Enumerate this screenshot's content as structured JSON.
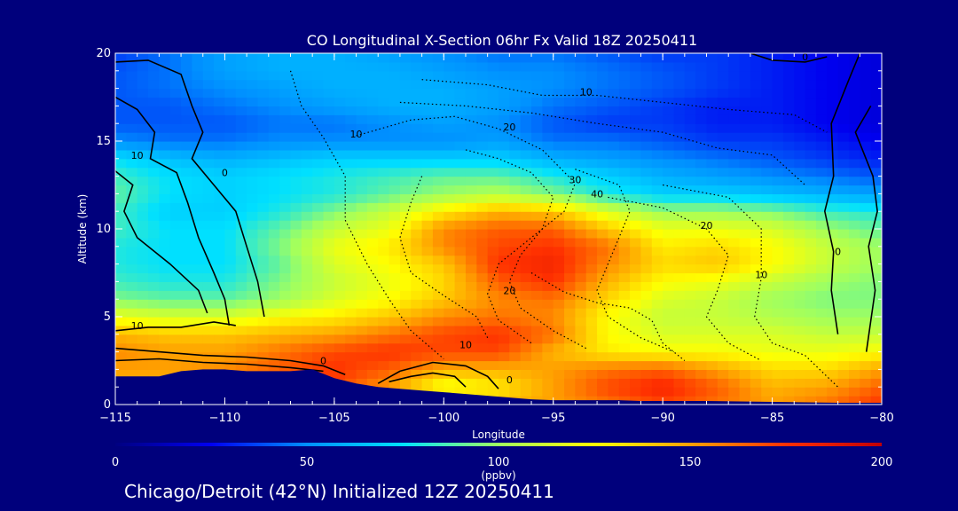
{
  "footer_text": "Chicago/Detroit (42°N) Initialized 12Z 20250411",
  "colors": {
    "background": "#00007c",
    "terrain": "#00007c",
    "colorbar_stops": [
      "#000080",
      "#0000f0",
      "#0090ff",
      "#00e0ff",
      "#a0ff60",
      "#ffff00",
      "#ffa000",
      "#ff3000",
      "#c00000"
    ]
  },
  "chart_data": {
    "type": "heatmap",
    "title": "CO Longitudinal X-Section 06hr  Fx Valid 18Z 20250411",
    "xlabel": "Longitude",
    "ylabel": "Altitude (km)",
    "xlim": [
      -115,
      -80
    ],
    "ylim": [
      0,
      20
    ],
    "x_ticks": [
      "−115",
      "−110",
      "−105",
      "−100",
      "−95",
      "−90",
      "−85",
      "−80"
    ],
    "y_ticks": [
      "0",
      "5",
      "10",
      "15",
      "20"
    ],
    "grid": false,
    "colorbar": {
      "label": "(ppbv)",
      "range": [
        0,
        200
      ],
      "ticks": [
        "0",
        "50",
        "100",
        "150",
        "200"
      ]
    },
    "x_values": [
      -115,
      -112.5,
      -110,
      -107.5,
      -105,
      -102.5,
      -100,
      -97.5,
      -95,
      -92.5,
      -90,
      -87.5,
      -85,
      -82.5,
      -80
    ],
    "y_values": [
      0,
      1,
      2,
      3,
      4,
      5,
      6,
      7,
      8,
      9,
      10,
      11,
      12,
      13,
      14,
      15,
      16,
      17,
      18,
      19,
      20
    ],
    "values": [
      [
        150,
        150,
        150,
        160,
        170,
        160,
        150,
        145,
        150,
        160,
        170,
        160,
        150,
        160,
        175
      ],
      [
        145,
        145,
        150,
        160,
        170,
        150,
        120,
        130,
        150,
        170,
        180,
        165,
        145,
        150,
        165
      ],
      [
        150,
        150,
        155,
        165,
        175,
        165,
        145,
        145,
        150,
        160,
        165,
        150,
        135,
        135,
        150
      ],
      [
        155,
        150,
        150,
        160,
        170,
        175,
        170,
        170,
        145,
        130,
        125,
        125,
        120,
        120,
        125
      ],
      [
        145,
        140,
        140,
        145,
        150,
        160,
        170,
        175,
        160,
        125,
        115,
        115,
        115,
        110,
        110
      ],
      [
        120,
        115,
        115,
        125,
        130,
        140,
        155,
        160,
        155,
        125,
        110,
        110,
        105,
        100,
        100
      ],
      [
        95,
        90,
        90,
        100,
        115,
        125,
        140,
        155,
        160,
        135,
        115,
        110,
        100,
        95,
        95
      ],
      [
        85,
        80,
        80,
        95,
        110,
        120,
        135,
        165,
        175,
        145,
        125,
        120,
        110,
        100,
        95
      ],
      [
        80,
        75,
        75,
        90,
        115,
        125,
        140,
        175,
        180,
        155,
        135,
        140,
        125,
        110,
        100
      ],
      [
        80,
        75,
        75,
        95,
        120,
        130,
        155,
        170,
        175,
        160,
        130,
        135,
        125,
        110,
        100
      ],
      [
        85,
        75,
        75,
        90,
        110,
        120,
        155,
        165,
        165,
        140,
        120,
        120,
        115,
        100,
        90
      ],
      [
        85,
        70,
        70,
        80,
        95,
        110,
        130,
        145,
        140,
        115,
        100,
        100,
        95,
        85,
        80
      ],
      [
        90,
        75,
        70,
        75,
        80,
        90,
        100,
        105,
        95,
        80,
        70,
        70,
        65,
        60,
        55
      ],
      [
        85,
        75,
        70,
        75,
        80,
        85,
        90,
        90,
        80,
        70,
        60,
        55,
        50,
        45,
        40
      ],
      [
        75,
        65,
        60,
        65,
        70,
        70,
        70,
        70,
        60,
        55,
        50,
        45,
        40,
        35,
        30
      ],
      [
        50,
        45,
        45,
        50,
        50,
        50,
        50,
        55,
        45,
        45,
        40,
        35,
        35,
        30,
        25
      ],
      [
        40,
        40,
        40,
        45,
        45,
        50,
        55,
        50,
        40,
        35,
        35,
        30,
        30,
        25,
        20
      ],
      [
        40,
        40,
        45,
        50,
        55,
        60,
        60,
        55,
        45,
        40,
        35,
        30,
        30,
        25,
        20
      ],
      [
        40,
        45,
        50,
        55,
        60,
        60,
        60,
        55,
        50,
        45,
        40,
        35,
        30,
        25,
        20
      ],
      [
        40,
        45,
        55,
        60,
        60,
        60,
        55,
        50,
        50,
        45,
        40,
        35,
        30,
        25,
        20
      ],
      [
        35,
        45,
        55,
        60,
        60,
        55,
        50,
        45,
        45,
        40,
        35,
        35,
        30,
        25,
        20
      ]
    ],
    "terrain": {
      "x": [
        -115,
        -114,
        -113,
        -112,
        -111,
        -110,
        -109,
        -108,
        -107,
        -106,
        -105,
        -104,
        -103,
        -102,
        -101,
        -100,
        -99,
        -98,
        -97,
        -96,
        -95,
        -94,
        -93,
        -92,
        -91,
        -90,
        -88,
        -85,
        -82,
        -80
      ],
      "elevation_km": [
        1.6,
        1.6,
        1.6,
        1.9,
        2.0,
        2.0,
        1.9,
        1.9,
        1.9,
        2.0,
        1.5,
        1.2,
        1.0,
        0.9,
        0.8,
        0.7,
        0.6,
        0.5,
        0.4,
        0.3,
        0.25,
        0.25,
        0.25,
        0.25,
        0.2,
        0.2,
        0.2,
        0.15,
        0.1,
        0.1
      ]
    },
    "contour_labels": [
      {
        "text": "10",
        "x": -114,
        "y": 14
      },
      {
        "text": "0",
        "x": -110,
        "y": 13
      },
      {
        "text": "10",
        "x": -114,
        "y": 4.3
      },
      {
        "text": "0",
        "x": -105.5,
        "y": 2.3
      },
      {
        "text": "10",
        "x": -104,
        "y": 15.2
      },
      {
        "text": "20",
        "x": -97,
        "y": 15.6
      },
      {
        "text": "10",
        "x": -93.5,
        "y": 17.6
      },
      {
        "text": "30",
        "x": -94,
        "y": 12.6
      },
      {
        "text": "40",
        "x": -93,
        "y": 11.8
      },
      {
        "text": "20",
        "x": -88,
        "y": 10
      },
      {
        "text": "10",
        "x": -85.5,
        "y": 7.2
      },
      {
        "text": "20",
        "x": -97,
        "y": 6.3
      },
      {
        "text": "10",
        "x": -99,
        "y": 3.2
      },
      {
        "text": "0",
        "x": -97,
        "y": 1.2
      },
      {
        "text": "0",
        "x": -82,
        "y": 8.5
      },
      {
        "text": "0",
        "x": -83.5,
        "y": 19.6
      }
    ]
  }
}
